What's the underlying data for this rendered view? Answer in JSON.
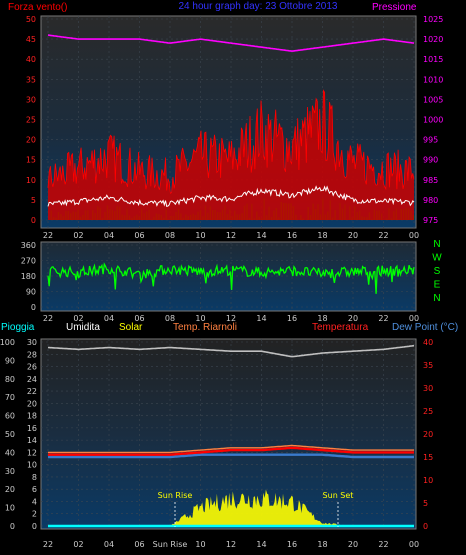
{
  "colors": {
    "wind": "#ff0000",
    "gust_fill": "#cc0000",
    "avg_wind": "#ffffff",
    "green_bars": "#008800",
    "pressure": "#ff00ff",
    "direction": "#00ff00",
    "humidity": "#c0c0c0",
    "solar": "#ffff00",
    "temp_riarnoli": "#ff8040",
    "temperature": "#ff0000",
    "dewpoint": "#3a7acc",
    "rain": "#00ffff",
    "title": "#3333ff"
  },
  "top": {
    "title": "24 hour graph day: 23 Ottobre 2013",
    "left_label": "Forza vento()",
    "right_label": "Pressione",
    "left_ticks": [
      "50",
      "45",
      "40",
      "35",
      "30",
      "25",
      "20",
      "15",
      "10",
      "5",
      "0"
    ],
    "right_ticks": [
      "1025",
      "1020",
      "1015",
      "1010",
      "1005",
      "1000",
      "995",
      "990",
      "985",
      "980",
      "975"
    ],
    "x_ticks": [
      "22",
      "02",
      "04",
      "06",
      "08",
      "10",
      "12",
      "14",
      "16",
      "18",
      "20",
      "22",
      "00"
    ]
  },
  "dir": {
    "left_ticks": [
      "360",
      "270",
      "180",
      "90",
      "0"
    ],
    "compass": [
      "N",
      "W",
      "S",
      "E",
      "N"
    ],
    "x_ticks": [
      "22",
      "02",
      "04",
      "06",
      "08",
      "10",
      "12",
      "14",
      "16",
      "18",
      "20",
      "22",
      "00"
    ]
  },
  "bottom": {
    "labels": {
      "rain": "Pioggia",
      "hum": "Umidita",
      "solar": "Solar",
      "temp2": "Temp. Riarnoli",
      "temp": "Temperatura",
      "dew": "Dew Point (°C)"
    },
    "left_ticks": [
      "100",
      "90",
      "80",
      "70",
      "60",
      "50",
      "40",
      "30",
      "20",
      "10",
      "0"
    ],
    "inner_ticks": [
      "30",
      "28",
      "26",
      "24",
      "22",
      "20",
      "18",
      "16",
      "14",
      "12",
      "10",
      "8",
      "6",
      "4",
      "2",
      "0"
    ],
    "right_ticks": [
      "40",
      "35",
      "30",
      "25",
      "20",
      "15",
      "10",
      "5",
      "0"
    ],
    "x_ticks": [
      "22",
      "02",
      "04",
      "06",
      "Sun Rise",
      "10",
      "12",
      "14",
      "16",
      "18",
      "20",
      "22",
      "00"
    ],
    "sunrise": "Sun Rise",
    "sunset": "Sun Set"
  },
  "chart_data": [
    {
      "type": "line",
      "title": "24 hour graph day: 23 Ottobre 2013",
      "x": [
        "22",
        "02",
        "04",
        "06",
        "08",
        "10",
        "12",
        "14",
        "16",
        "18",
        "20",
        "22",
        "00"
      ],
      "series": [
        {
          "name": "Forza vento()",
          "axis": "left",
          "values": [
            10,
            13,
            16,
            12,
            11,
            16,
            15,
            22,
            18,
            24,
            14,
            13,
            12
          ]
        },
        {
          "name": "Pressione",
          "axis": "right",
          "values": [
            1021,
            1020,
            1020,
            1020,
            1019,
            1020,
            1019,
            1018,
            1017,
            1018,
            1019,
            1020,
            1019
          ]
        }
      ],
      "ylim_left": [
        0,
        50
      ],
      "ylim_right": [
        975,
        1025
      ]
    },
    {
      "type": "scatter",
      "x": [
        "22",
        "02",
        "04",
        "06",
        "08",
        "10",
        "12",
        "14",
        "16",
        "18",
        "20",
        "22",
        "00"
      ],
      "series": [
        {
          "name": "direction",
          "values": [
            210,
            200,
            225,
            190,
            220,
            205,
            215,
            200,
            210,
            195,
            205,
            210,
            215
          ]
        }
      ],
      "ylim": [
        0,
        360
      ]
    },
    {
      "type": "line",
      "x": [
        "22",
        "02",
        "04",
        "06",
        "08",
        "10",
        "12",
        "14",
        "16",
        "18",
        "20",
        "22",
        "00"
      ],
      "series": [
        {
          "name": "Umidita",
          "axis": "left",
          "values": [
            97,
            96,
            97,
            96,
            97,
            96,
            95,
            95,
            92,
            94,
            95,
            96,
            98
          ]
        },
        {
          "name": "Solar",
          "axis": "inner",
          "values": [
            0,
            0,
            0,
            0,
            0,
            3,
            4.5,
            4.5,
            4,
            0.5,
            0,
            0,
            0
          ]
        },
        {
          "name": "Temp. Riarnoli",
          "axis": "right",
          "values": [
            16,
            16,
            16,
            16,
            16,
            16.5,
            17,
            17,
            17.5,
            17,
            16.5,
            16.5,
            16.5
          ]
        },
        {
          "name": "Temperatura",
          "axis": "right",
          "values": [
            15.5,
            15.5,
            15.5,
            15.5,
            15.5,
            16,
            16.5,
            16.5,
            17,
            16.5,
            16,
            16,
            16
          ]
        },
        {
          "name": "Dew Point (°C)",
          "axis": "right",
          "values": [
            15,
            15,
            15,
            15,
            15,
            15.5,
            15.5,
            15.5,
            15.5,
            15.5,
            15,
            15,
            15
          ]
        },
        {
          "name": "Pioggia",
          "axis": "left",
          "values": [
            0,
            0,
            0,
            0,
            0,
            0,
            0,
            0,
            0,
            0,
            0,
            0,
            0
          ]
        }
      ],
      "ylim_left": [
        0,
        100
      ],
      "ylim_inner": [
        0,
        30
      ],
      "ylim_right": [
        0,
        40
      ]
    }
  ]
}
